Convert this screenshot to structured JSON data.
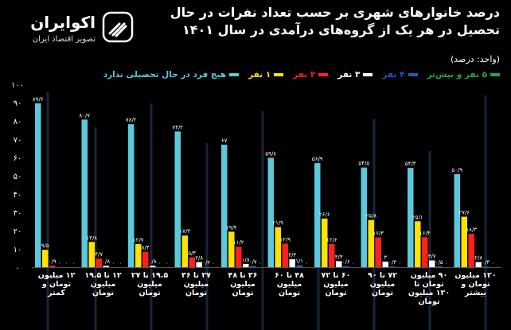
{
  "title_lines": [
    "درصد خانوارهای شهری بر حسب تعداد نفرات در حال",
    "تحصیل در هر یک از گروه‌های درآمدی در سال ۱۴۰۱"
  ],
  "unit": "(واحد: درصد)",
  "brand": {
    "name": "اکوایران",
    "subtitle": "تصویر اقتصاد ایران",
    "icon": "ekoiran-logo-icon"
  },
  "colors": {
    "none": "#5bc8dc",
    "one": "#ffe200",
    "two": "#ff1f1f",
    "three": "#ffffff",
    "four": "#2a53c4",
    "five": "#1fa84a",
    "background": "#000000"
  },
  "chart_data": {
    "type": "bar",
    "ylim": [
      0,
      100
    ],
    "yticks": [
      0,
      10,
      20,
      30,
      40,
      50,
      60,
      70,
      80,
      90,
      100
    ],
    "ytick_labels": [
      "۰",
      "۱۰",
      "۲۰",
      "۳۰",
      "۴۰",
      "۵۰",
      "۶۰",
      "۷۰",
      "۸۰",
      "۹۰",
      "۱۰۰"
    ],
    "grid": false,
    "legend_position": "top",
    "categories": [
      [
        "۱۲ میلیون",
        "تومان و",
        "کمتر"
      ],
      [
        "۱۲ تا ۱۹.۵",
        "میلیون",
        "تومان"
      ],
      [
        "۱۹.۵ تا ۲۷",
        "میلیون",
        "تومان"
      ],
      [
        "۲۷ تا ۳۶",
        "میلیون",
        "تومان"
      ],
      [
        "۳۶ تا ۴۸",
        "میلیون",
        "تومان"
      ],
      [
        "۴۸ تا ۶۰",
        "میلیون",
        "تومان"
      ],
      [
        "۶۰ تا ۷۲",
        "میلیون",
        "تومان"
      ],
      [
        "۷۲ تا ۹۰",
        "میلیون",
        "تومان"
      ],
      [
        "۹۰ میلیون",
        "تومان تا",
        "۱۲۰ میلیون",
        "تومان"
      ],
      [
        "۱۲۰ میلیون",
        "تومان و",
        "بیشتر"
      ]
    ],
    "series": [
      {
        "name": "هیچ فرد در حال تحصیلی ندارد",
        "color": "#5bc8dc",
        "values": [
          89.6,
          80.7,
          78.2,
          74.2,
          67,
          59.8,
          56.9,
          54.5,
          54.3,
          50.9
        ],
        "labels": [
          "۸۹/۶",
          "۸۰/۷",
          "۷۸/۲",
          "۷۴/۲",
          "۶۷",
          "۵۹/۸",
          "۵۶/۹",
          "۵۴/۵",
          "۵۴/۳",
          "۵۰/۹"
        ]
      },
      {
        "name": "۱ نفر",
        "color": "#ffe200",
        "values": [
          9.5,
          13.8,
          12.7,
          17.3,
          19.4,
          21.9,
          26.6,
          25.8,
          25.1,
          27.6
        ],
        "labels": [
          "۹/۵",
          "۱۳/۸",
          "۱۲/۷",
          "۱۷/۳",
          "۱۹/۴",
          "۲۱/۹",
          "۲۶/۶",
          "۲۵/۸",
          "۲۵/۱",
          "۲۷/۶"
        ]
      },
      {
        "name": "۲ نفر",
        "color": "#ff1f1f",
        "values": [
          0.9,
          4.7,
          8.4,
          5.4,
          11.2,
          12.9,
          12.6,
          16.3,
          16.4,
          18.3
        ],
        "labels": [
          "۰/۹",
          "۴/۷",
          "۸/۴",
          "۵/۴",
          "۱۱/۲",
          "۱۲/۹",
          "۱۲/۶",
          "۱۶/۳",
          "۱۶/۴",
          "۱۸/۳"
        ]
      },
      {
        "name": "۳ نفر",
        "color": "#ffffff",
        "values": [
          0,
          0.8,
          0.8,
          2.8,
          1.8,
          4.3,
          3.3,
          3,
          3.7,
          2.8
        ],
        "labels": [
          "۰",
          "۰/۸",
          "۰/۸",
          "۲/۸",
          "۱/۸",
          "۴/۳",
          "۳/۳",
          "۳",
          "۳/۷",
          "۲/۸"
        ]
      },
      {
        "name": "۴ نفر",
        "color": "#2a53c4",
        "values": [
          0,
          0,
          0,
          0.2,
          0.7,
          1.1,
          0.6,
          0.4,
          0.5,
          0.4
        ],
        "labels": [
          "۰",
          "۰",
          "۰",
          "۰/۲",
          "۰/۷",
          "۱/۱",
          "۰/۶",
          "۰/۴",
          "۰/۵",
          "۰/۴"
        ]
      },
      {
        "name": "۵ نفر و بیش‌تر",
        "color": "#1fa84a",
        "values": [
          0,
          0,
          0,
          0,
          0,
          0,
          0,
          0,
          0,
          0
        ],
        "labels": [
          "۰",
          "۰",
          "۰",
          "۰",
          "۰",
          "۰",
          "۰",
          "۰",
          "۰",
          "۰"
        ]
      }
    ]
  }
}
